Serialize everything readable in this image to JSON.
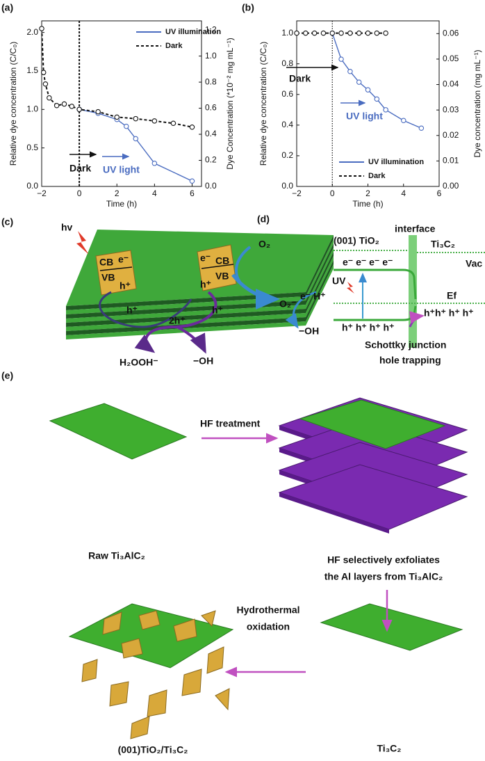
{
  "chart_data": [
    {
      "type": "line",
      "label": "(a)",
      "xlabel": "Time (h)",
      "ylabel": "Relative dye concentration (C/C₀)",
      "y2label": "Dye Concentration (*10⁻² mg mL⁻¹)",
      "xlim": [
        -2,
        6.5
      ],
      "xticks": [
        {
          "value": -2,
          "label": "−2"
        },
        0,
        2,
        4,
        6
      ],
      "ylim": [
        0,
        2.15
      ],
      "yticks": [
        {
          "value": 0,
          "label": "0.0"
        },
        {
          "value": 0.5,
          "label": "0.5"
        },
        {
          "value": 1,
          "label": "1.0"
        },
        {
          "value": 1.5,
          "label": "1.5"
        },
        {
          "value": 2,
          "label": "2.0"
        }
      ],
      "y2lim": [
        0,
        1.27
      ],
      "y2ticks": [
        {
          "value": 0,
          "label": "0.0"
        },
        0.2,
        0.4,
        0.6,
        0.8,
        {
          "value": 1,
          "label": "1.0"
        },
        1.2
      ],
      "legend": "upper right",
      "annotations": [
        "Dark",
        "UV light"
      ],
      "series": [
        {
          "name": "UV illumination",
          "color": "#4a6cc0",
          "linestyle": "solid",
          "x": [
            0,
            1,
            2,
            2.5,
            3,
            4,
            6
          ],
          "values": [
            1.0,
            0.95,
            0.87,
            0.78,
            0.62,
            0.3,
            0.07
          ]
        },
        {
          "name": "Dark",
          "color": "#111111",
          "linestyle": "dashed",
          "x": [
            -2,
            -1.9,
            -1.8,
            -1.6,
            -1.2,
            -0.8,
            -0.4,
            0,
            1,
            2,
            3,
            4,
            5,
            6
          ],
          "values": [
            2.05,
            1.48,
            1.33,
            1.15,
            1.05,
            1.07,
            1.04,
            1.0,
            0.97,
            0.9,
            0.88,
            0.85,
            0.82,
            0.77
          ]
        }
      ]
    },
    {
      "type": "line",
      "label": "(b)",
      "xlabel": "Time (h)",
      "ylabel": "Relative dye concentration (C/C₀)",
      "y2label": "Dye concentration (mg mL⁻¹)",
      "xlim": [
        -2,
        6
      ],
      "xticks": [
        {
          "value": -2,
          "label": "−2"
        },
        0,
        2,
        4,
        6
      ],
      "ylim": [
        0,
        1.08
      ],
      "yticks": [
        {
          "value": 0,
          "label": "0.0"
        },
        0.2,
        0.4,
        0.6,
        0.8,
        {
          "value": 1,
          "label": "1.0"
        }
      ],
      "y2lim": [
        0,
        0.065
      ],
      "y2ticks": [
        {
          "value": 0,
          "label": "0.00"
        },
        0.01,
        0.02,
        0.03,
        0.04,
        0.05,
        0.06
      ],
      "legend": "lower right",
      "annotations": [
        "Dark",
        "UV light"
      ],
      "series": [
        {
          "name": "UV illumination",
          "color": "#4a6cc0",
          "linestyle": "solid",
          "x": [
            0,
            0.5,
            1,
            1.5,
            2,
            2.5,
            3,
            4,
            5
          ],
          "values": [
            1.0,
            0.83,
            0.75,
            0.68,
            0.63,
            0.57,
            0.5,
            0.43,
            0.38
          ]
        },
        {
          "name": "Dark",
          "color": "#111111",
          "linestyle": "dashed",
          "x": [
            -2,
            -1.5,
            -1,
            -0.5,
            0,
            0.5,
            1,
            1.5,
            2,
            2.5,
            3
          ],
          "values": [
            1.0,
            1.0,
            1.0,
            1.0,
            1.0,
            1.0,
            1.0,
            1.0,
            1.0,
            1.0,
            1.0
          ]
        }
      ]
    }
  ],
  "panel_c": {
    "label": "(c)",
    "texts": [
      "hv",
      "CB",
      "e⁻",
      "VB",
      "h⁺",
      "e⁻",
      "CB",
      "VB",
      "h⁺",
      "h⁺",
      "2h⁺",
      "h⁺",
      "O₂",
      "O₂⁻",
      "e⁻ H⁺",
      "−OH",
      "H₂OOH⁻",
      "−OH"
    ]
  },
  "panel_d": {
    "label": "(d)",
    "texts": [
      "(001) TiO₂",
      "interface",
      "Ti₃C₂",
      "Vac",
      "e⁻ e⁻ e⁻ e⁻",
      "UV",
      "Ef",
      "h⁺ h⁺ h⁺ h⁺",
      "h⁺h⁺ h⁺ h⁺",
      "Schottky junction",
      "hole trapping"
    ]
  },
  "panel_e": {
    "label": "(e)",
    "texts": [
      "HF treatment",
      "Raw Ti₃AlC₂",
      "HF selectively exfoliates",
      "the Al layers from Ti₃AlC₂",
      "Hydrothermal",
      "oxidation",
      "(001)TiO₂/Ti₃C₂",
      "Ti₃C₂"
    ]
  }
}
